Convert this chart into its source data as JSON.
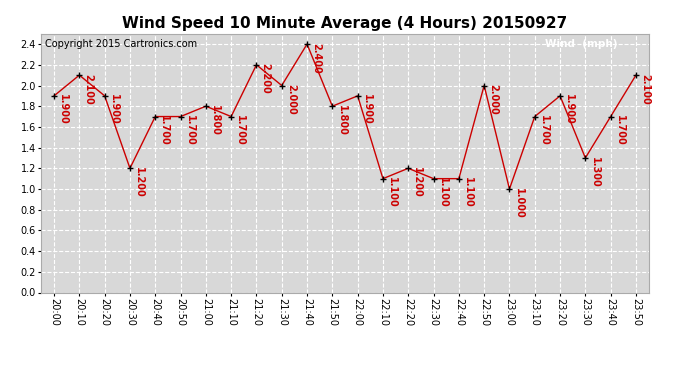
{
  "title": "Wind Speed 10 Minute Average (4 Hours) 20150927",
  "copyright_text": "Copyright 2015 Cartronics.com",
  "legend_label": "Wind  (mph)",
  "legend_bg": "#cc0000",
  "legend_fg": "#ffffff",
  "times": [
    "20:00",
    "20:10",
    "20:20",
    "20:30",
    "20:40",
    "20:50",
    "21:00",
    "21:10",
    "21:20",
    "21:30",
    "21:40",
    "21:50",
    "22:00",
    "22:10",
    "22:20",
    "22:30",
    "22:40",
    "22:50",
    "23:00",
    "23:10",
    "23:20",
    "23:30",
    "23:40",
    "23:50"
  ],
  "values": [
    1.9,
    2.1,
    1.9,
    1.2,
    1.7,
    1.7,
    1.8,
    1.7,
    2.2,
    2.0,
    2.4,
    1.8,
    1.9,
    1.1,
    1.2,
    1.1,
    1.1,
    2.0,
    1.0,
    1.7,
    1.9,
    1.3,
    1.7,
    2.1
  ],
  "line_color": "#cc0000",
  "marker_color": "#000000",
  "label_color": "#cc0000",
  "ylim": [
    0.0,
    2.5
  ],
  "yticks": [
    0.0,
    0.2,
    0.4,
    0.6,
    0.8,
    1.0,
    1.2,
    1.4,
    1.6,
    1.8,
    2.0,
    2.2,
    2.4
  ],
  "bg_color": "#ffffff",
  "plot_bg_color": "#d8d8d8",
  "grid_color": "#ffffff",
  "title_fontsize": 11,
  "label_fontsize": 7,
  "tick_fontsize": 7,
  "copyright_fontsize": 7
}
